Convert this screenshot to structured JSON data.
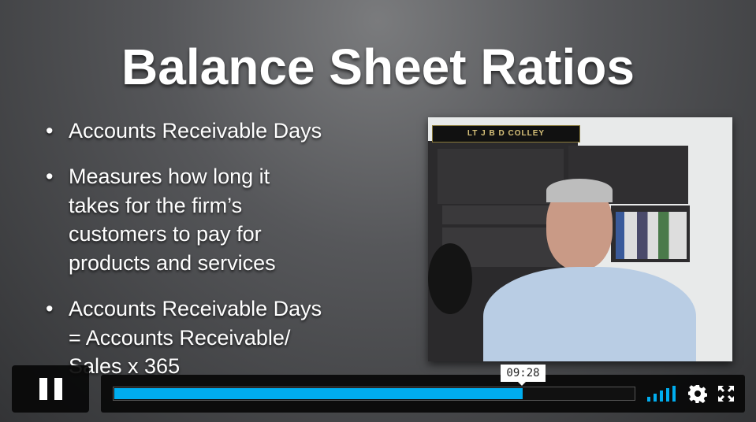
{
  "slide": {
    "title": "Balance Sheet Ratios",
    "bullets": [
      {
        "symbol": "•",
        "text": "Accounts Receivable Days"
      },
      {
        "symbol": "•",
        "text": "Measures how long it\ntakes for the firm’s\ncustomers to pay for\nproducts and services"
      },
      {
        "symbol": "•",
        "text": "Accounts Receivable Days\n= Accounts Receivable/\nSales x 365"
      }
    ],
    "photo_sign": "LT J B D COLLEY"
  },
  "player": {
    "state": "playing",
    "hover_time": "09:28",
    "progress_fraction": 0.786,
    "accent_color": "#00adef",
    "icons": [
      "pause-icon",
      "volume-bars-icon",
      "gear-icon",
      "fullscreen-icon"
    ]
  }
}
